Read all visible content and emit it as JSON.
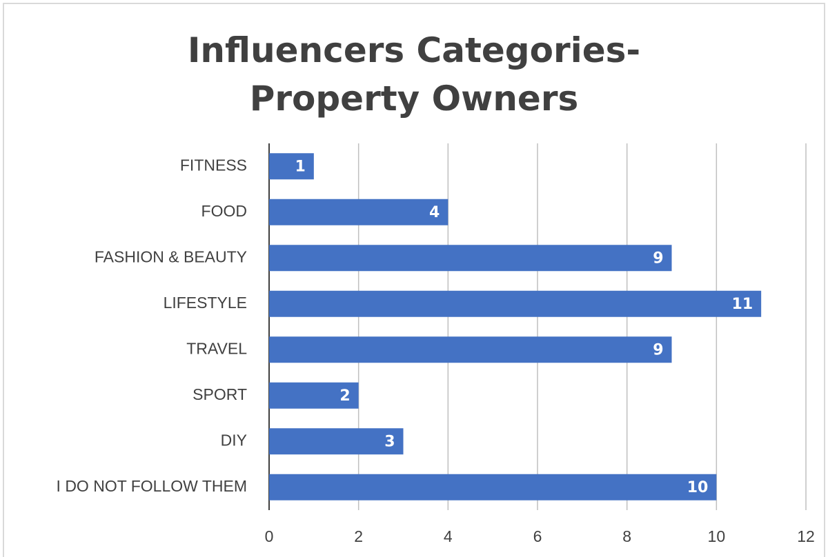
{
  "chart_data": {
    "type": "bar",
    "orientation": "horizontal",
    "title": "Influencers Categories- Property Owners",
    "categories": [
      "FITNESS",
      "FOOD",
      "FASHION & BEAUTY",
      "LIFESTYLE",
      "TRAVEL",
      "SPORT",
      "DIY",
      "I DO NOT FOLLOW THEM"
    ],
    "values": [
      1,
      4,
      9,
      11,
      9,
      2,
      3,
      10
    ],
    "color": "#4472c4",
    "xlim": [
      0,
      12
    ],
    "xticks": [
      0,
      2,
      4,
      6,
      8,
      10,
      12
    ],
    "grid": true,
    "data_labels": true
  }
}
